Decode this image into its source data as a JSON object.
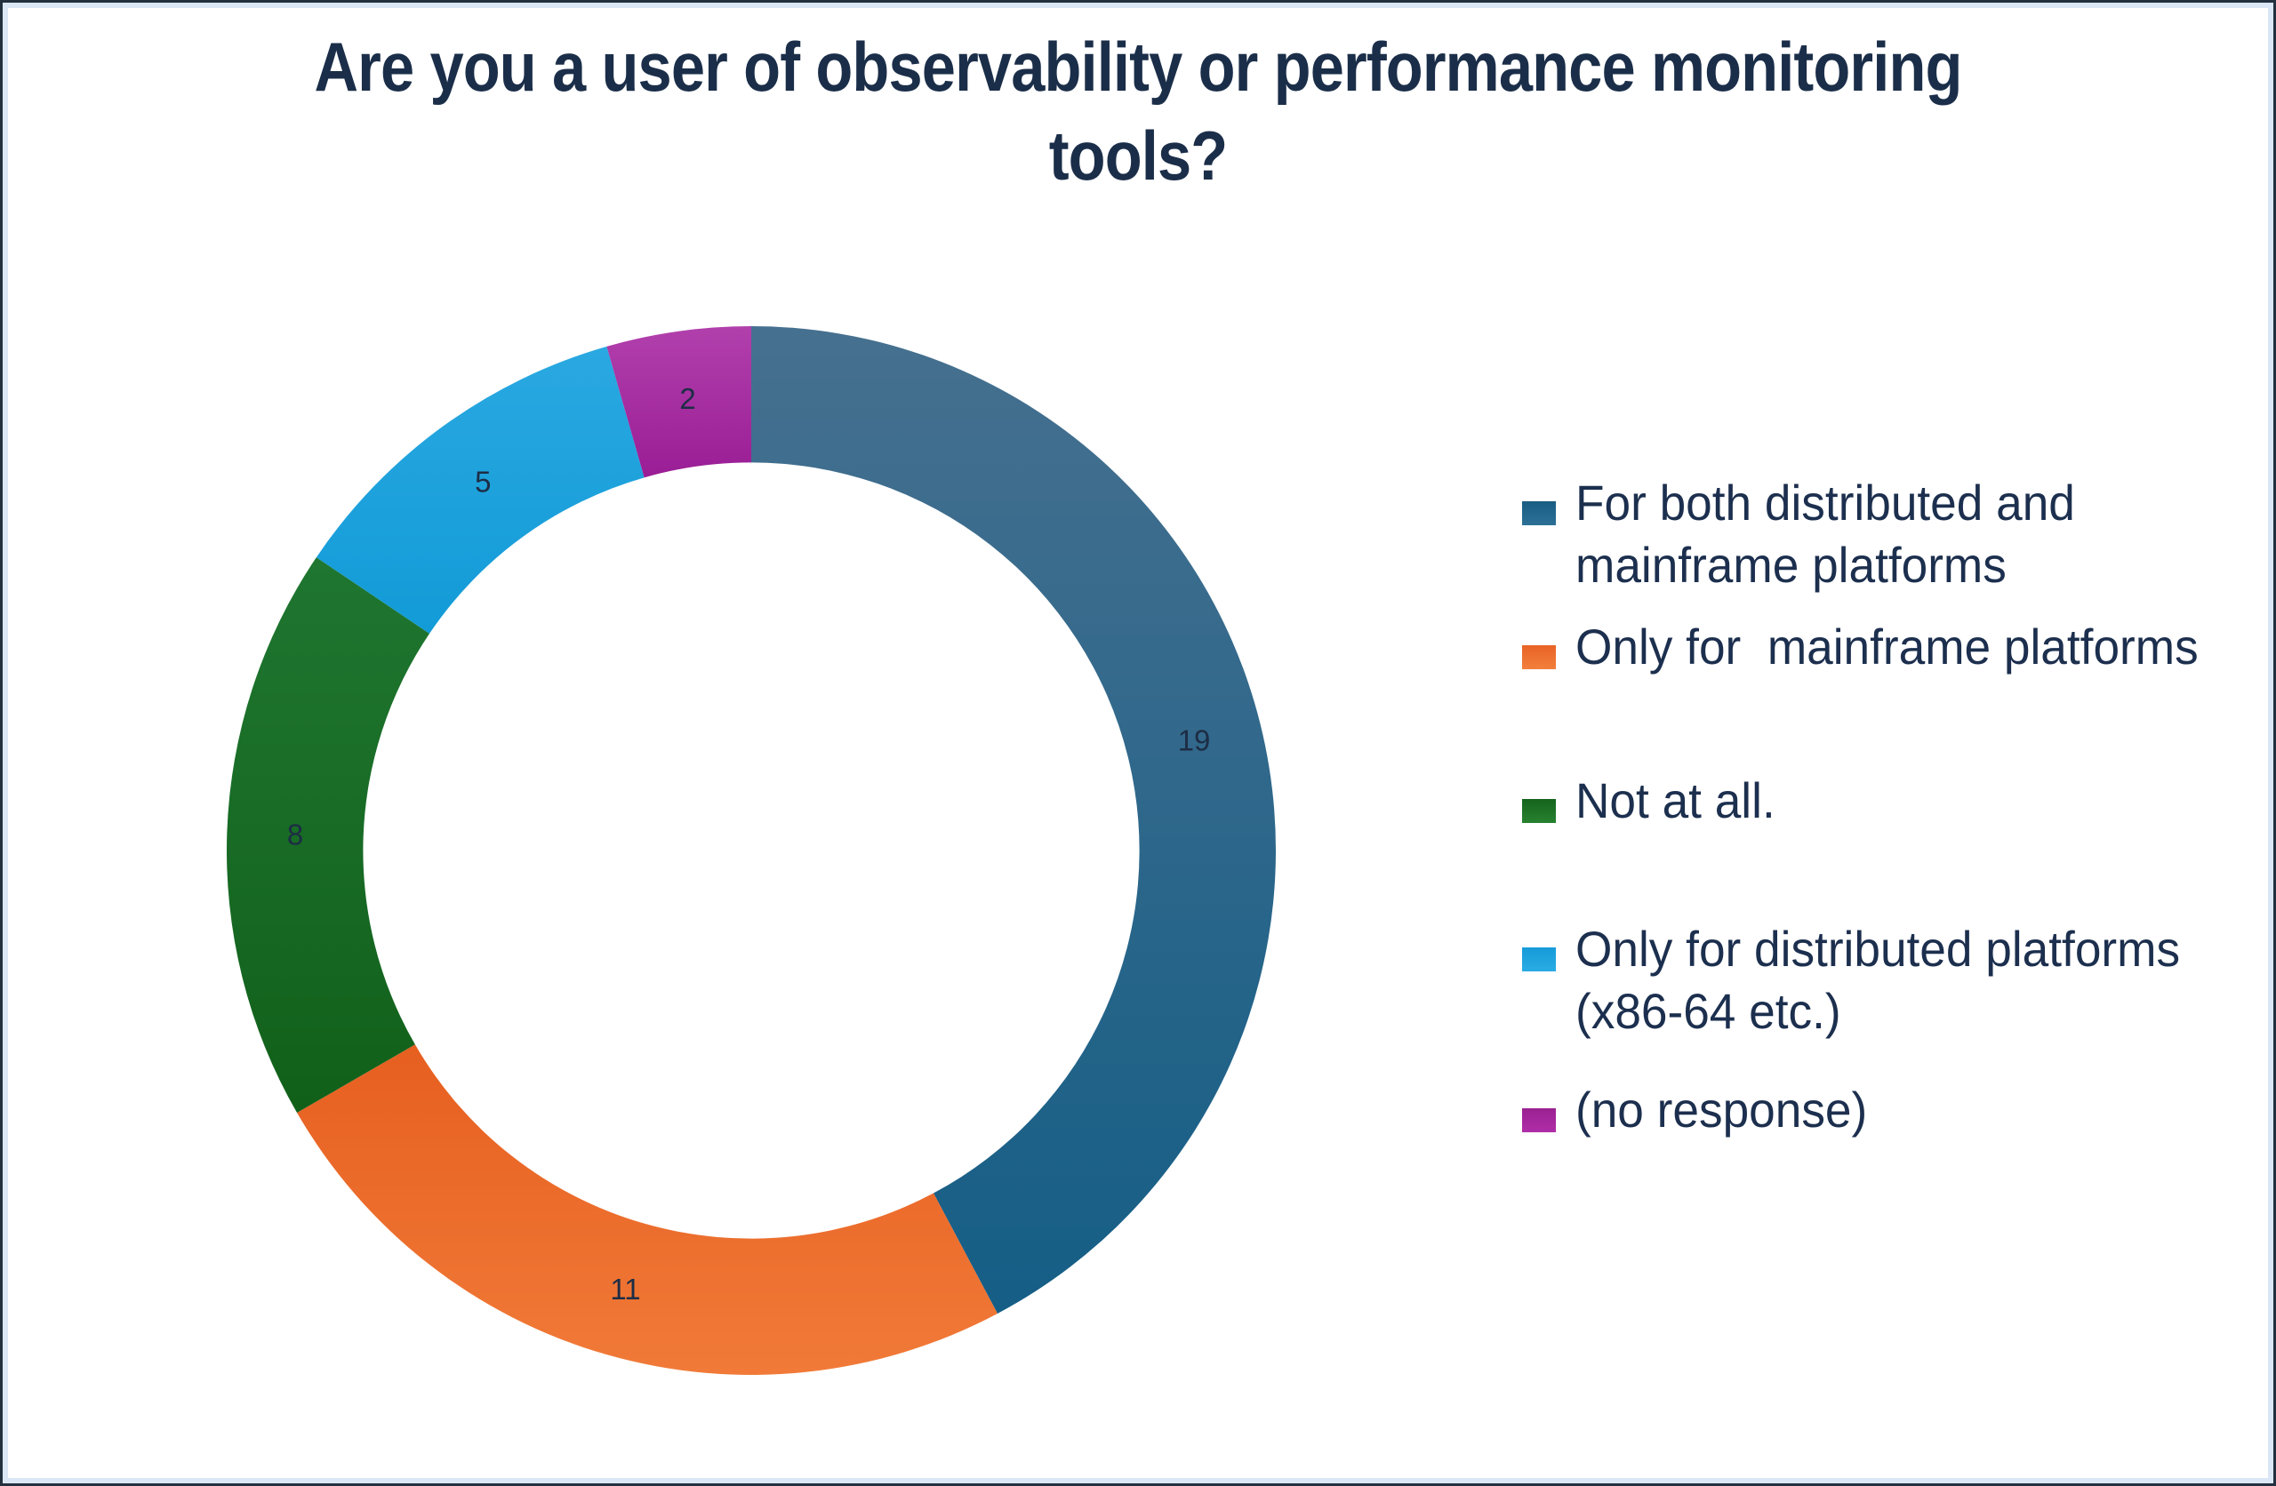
{
  "page": {
    "background": "#ffffff",
    "outer_border_color": "#22303f",
    "inner_border_color": "#dbe7f6"
  },
  "title": {
    "text": "Are you a user of observability or performance monitoring tools?",
    "lines": [
      "Are you a user of observability or performance monitoring",
      "tools?"
    ],
    "color": "#1b2e49"
  },
  "chart_data": {
    "type": "pie",
    "subtype": "donut",
    "title": "Are you a user of observability or performance monitoring tools?",
    "categories": [
      "For both distributed and mainframe platforms",
      "Only for  mainframe platforms",
      "Not at all.",
      "Only for distributed platforms (x86-64 etc.)",
      "(no response)"
    ],
    "values": [
      19,
      11,
      8,
      5,
      2
    ],
    "colors": [
      "#1a618a",
      "#ed6c2d",
      "#187326",
      "#1ca3de",
      "#a627a1"
    ],
    "slice_gradients": [
      [
        "#46708f",
        "#155e86"
      ],
      [
        "#e65f20",
        "#f17a38"
      ],
      [
        "#1f7630",
        "#11601a"
      ],
      [
        "#2aa8e1",
        "#129bd7"
      ],
      [
        "#b140ac",
        "#9a1d95"
      ]
    ],
    "value_labels": [
      "19",
      "11",
      "8",
      "5",
      "2"
    ],
    "value_label_color": "#1d2d45",
    "start_angle_deg": 0,
    "direction": "clockwise",
    "hole_ratio": 0.74,
    "grid": false,
    "legend_position": "right"
  },
  "legend": {
    "text_color": "#1c2f4e",
    "items": [
      {
        "lines": [
          "For both distributed and",
          "mainframe platforms"
        ],
        "swatch_from": "#1a5d83",
        "swatch_to": "#2d7097"
      },
      {
        "lines": [
          "Only for  mainframe platforms"
        ],
        "swatch_from": "#e86325",
        "swatch_to": "#f2803c"
      },
      {
        "lines": [
          "Not at all."
        ],
        "swatch_from": "#15641d",
        "swatch_to": "#27822f"
      },
      {
        "lines": [
          "Only for distributed platforms",
          "(x86-64 etc.)"
        ],
        "swatch_from": "#169bd9",
        "swatch_to": "#2aace3"
      },
      {
        "lines": [
          "(no response)"
        ],
        "swatch_from": "#9a2191",
        "swatch_to": "#b02ea9"
      }
    ]
  }
}
